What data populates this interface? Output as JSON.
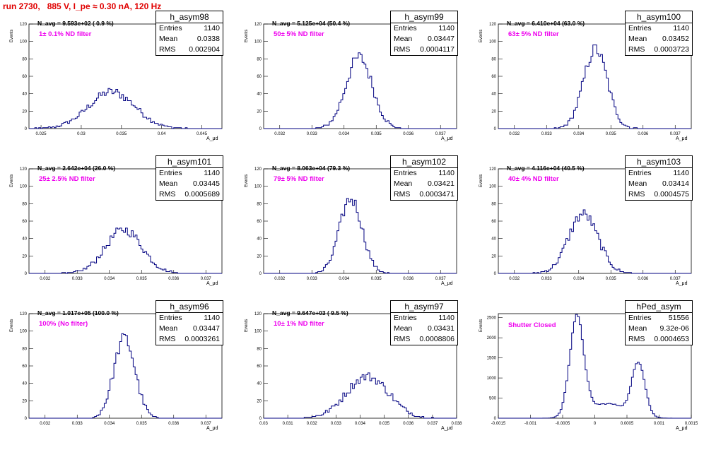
{
  "page_title": "run 2730,   885 V, I_pe ≈ 0.30 nA, 120 Hz",
  "colors": {
    "line": "#000080",
    "title": "#e00000",
    "filter_label": "#ee00ee"
  },
  "chart_data": [
    {
      "type": "histogram",
      "name": "h_asym98",
      "navg": "N_avg = 9.593e+02 ( 0.9 %)",
      "filter": "1± 0.1% ND filter",
      "entries": "1140",
      "mean": "0.0338",
      "rms": "0.002904",
      "xlim": [
        0.0235,
        0.0475
      ],
      "ylim": [
        0,
        120
      ],
      "xticks": [
        0.025,
        0.03,
        0.035,
        0.04,
        0.045
      ],
      "xtick_labels": [
        "0.025",
        "0.03",
        "0.035",
        "0.04",
        "0.045"
      ],
      "yticks": [
        0,
        20,
        40,
        60,
        80,
        100,
        120
      ],
      "xlabel": "A_μd",
      "ylabel": "Events",
      "mu": 0.0338,
      "sigma": 0.0029,
      "peak": 42
    },
    {
      "type": "histogram",
      "name": "h_asym99",
      "navg": "N_avg = 5.125e+04 (50.4 %)",
      "filter": "50± 5% ND filter",
      "entries": "1140",
      "mean": "0.03447",
      "rms": "0.0004117",
      "xlim": [
        0.0315,
        0.0375
      ],
      "ylim": [
        0,
        120
      ],
      "xticks": [
        0.032,
        0.033,
        0.034,
        0.035,
        0.036,
        0.037
      ],
      "xtick_labels": [
        "0.032",
        "0.033",
        "0.034",
        "0.035",
        "0.036",
        "0.037"
      ],
      "yticks": [
        0,
        20,
        40,
        60,
        80,
        100,
        120
      ],
      "xlabel": "A_μd",
      "ylabel": "Events",
      "mu": 0.03447,
      "sigma": 0.00041,
      "peak": 82
    },
    {
      "type": "histogram",
      "name": "h_asym100",
      "navg": "N_avg = 6.410e+04 (63.0 %)",
      "filter": "63± 5% ND filter",
      "entries": "1140",
      "mean": "0.03452",
      "rms": "0.0003723",
      "xlim": [
        0.0315,
        0.0375
      ],
      "ylim": [
        0,
        120
      ],
      "xticks": [
        0.032,
        0.033,
        0.034,
        0.035,
        0.036,
        0.037
      ],
      "xtick_labels": [
        "0.032",
        "0.033",
        "0.034",
        "0.035",
        "0.036",
        "0.037"
      ],
      "yticks": [
        0,
        20,
        40,
        60,
        80,
        100,
        120
      ],
      "xlabel": "A_μd",
      "ylabel": "Events",
      "mu": 0.03452,
      "sigma": 0.00037,
      "peak": 91
    },
    {
      "type": "histogram",
      "name": "h_asym101",
      "navg": "N_avg = 2.642e+04 (26.0 %)",
      "filter": "25± 2.5% ND filter",
      "entries": "1140",
      "mean": "0.03445",
      "rms": "0.0005689",
      "xlim": [
        0.0315,
        0.0375
      ],
      "ylim": [
        0,
        120
      ],
      "xticks": [
        0.032,
        0.033,
        0.034,
        0.035,
        0.036,
        0.037
      ],
      "xtick_labels": [
        "0.032",
        "0.033",
        "0.034",
        "0.035",
        "0.036",
        "0.037"
      ],
      "yticks": [
        0,
        20,
        40,
        60,
        80,
        100,
        120
      ],
      "xlabel": "A_μd",
      "ylabel": "Events",
      "mu": 0.03445,
      "sigma": 0.00057,
      "peak": 50
    },
    {
      "type": "histogram",
      "name": "h_asym102",
      "navg": "N_avg = 8.063e+04 (79.3 %)",
      "filter": "79± 5% ND filter",
      "entries": "1140",
      "mean": "0.03421",
      "rms": "0.0003471",
      "xlim": [
        0.0315,
        0.0375
      ],
      "ylim": [
        0,
        120
      ],
      "xticks": [
        0.032,
        0.033,
        0.034,
        0.035,
        0.036,
        0.037
      ],
      "xtick_labels": [
        "0.032",
        "0.033",
        "0.034",
        "0.035",
        "0.036",
        "0.037"
      ],
      "yticks": [
        0,
        20,
        40,
        60,
        80,
        100,
        120
      ],
      "xlabel": "A_μd",
      "ylabel": "Events",
      "mu": 0.03421,
      "sigma": 0.00035,
      "peak": 86
    },
    {
      "type": "histogram",
      "name": "h_asym103",
      "navg": "N_avg = 4.116e+04 (40.5 %)",
      "filter": "40± 4% ND filter",
      "entries": "1140",
      "mean": "0.03414",
      "rms": "0.0004575",
      "xlim": [
        0.0315,
        0.0375
      ],
      "ylim": [
        0,
        120
      ],
      "xticks": [
        0.032,
        0.033,
        0.034,
        0.035,
        0.036,
        0.037
      ],
      "xtick_labels": [
        "0.032",
        "0.033",
        "0.034",
        "0.035",
        "0.036",
        "0.037"
      ],
      "yticks": [
        0,
        20,
        40,
        60,
        80,
        100,
        120
      ],
      "xlabel": "A_μd",
      "ylabel": "Events",
      "mu": 0.03414,
      "sigma": 0.00046,
      "peak": 68
    },
    {
      "type": "histogram",
      "name": "h_asym96",
      "navg": "N_avg = 1.017e+05 (100.0 %)",
      "filter": "100% (No filter)",
      "entries": "1140",
      "mean": "0.03447",
      "rms": "0.0003261",
      "xlim": [
        0.0315,
        0.0375
      ],
      "ylim": [
        0,
        120
      ],
      "xticks": [
        0.032,
        0.033,
        0.034,
        0.035,
        0.036,
        0.037
      ],
      "xtick_labels": [
        "0.032",
        "0.033",
        "0.034",
        "0.035",
        "0.036",
        "0.037"
      ],
      "yticks": [
        0,
        20,
        40,
        60,
        80,
        100,
        120
      ],
      "xlabel": "A_μd",
      "ylabel": "Events",
      "mu": 0.03447,
      "sigma": 0.00033,
      "peak": 92
    },
    {
      "type": "histogram",
      "name": "h_asym97",
      "navg": "N_avg = 9.647e+03 ( 9.5 %)",
      "filter": "10± 1% ND filter",
      "entries": "1140",
      "mean": "0.03431",
      "rms": "0.0008806",
      "xlim": [
        0.03,
        0.038
      ],
      "ylim": [
        0,
        120
      ],
      "xticks": [
        0.03,
        0.031,
        0.032,
        0.033,
        0.034,
        0.035,
        0.036,
        0.037,
        0.038
      ],
      "xtick_labels": [
        "0.03",
        "0.031",
        "0.032",
        "0.033",
        "0.034",
        "0.035",
        "0.036",
        "0.037",
        "0.038"
      ],
      "yticks": [
        0,
        20,
        40,
        60,
        80,
        100,
        120
      ],
      "xlabel": "A_μd",
      "ylabel": "Events",
      "mu": 0.03431,
      "sigma": 0.00088,
      "peak": 48
    },
    {
      "type": "histogram",
      "name": "hPed_asym",
      "navg": "",
      "filter": "Shutter Closed",
      "entries": "51556",
      "mean": "9.32e-06",
      "rms": "0.0004653",
      "xlim": [
        -0.0015,
        0.0015
      ],
      "ylim": [
        0,
        2600
      ],
      "xticks": [
        -0.0015,
        -0.001,
        -0.0005,
        0,
        0.0005,
        0.001,
        0.0015
      ],
      "xtick_labels": [
        "-0.0015",
        "-0.001",
        "-0.0005",
        "0",
        "0.0005",
        "0.001",
        "0.0015"
      ],
      "yticks": [
        0,
        500,
        1000,
        1500,
        2000,
        2500
      ],
      "xlabel": "A_μd",
      "ylabel": "Events",
      "bimodal": true,
      "peaks": [
        {
          "mu": -0.00028,
          "sigma": 0.00011,
          "peak": 2450
        },
        {
          "mu": 0.00068,
          "sigma": 0.0001,
          "peak": 1320
        },
        {
          "mu": 0.0002,
          "sigma": 0.0003,
          "peak": 360
        }
      ]
    }
  ]
}
